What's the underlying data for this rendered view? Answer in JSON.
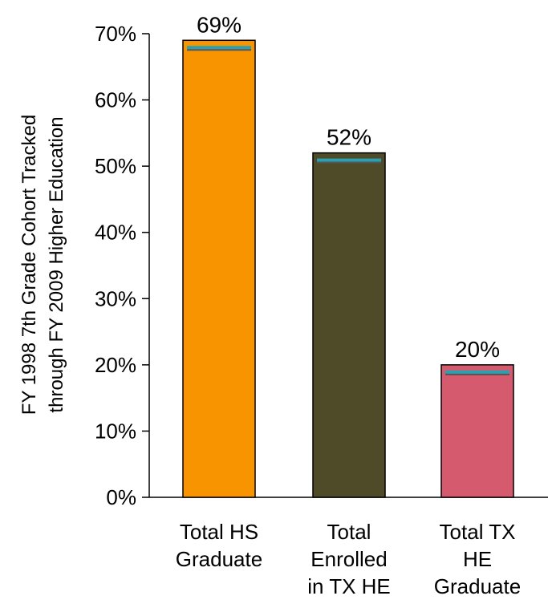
{
  "chart_data": {
    "type": "bar",
    "categories": [
      [
        "Total HS",
        "Graduate"
      ],
      [
        "Total",
        "Enrolled",
        "in TX HE"
      ],
      [
        "Total TX",
        "HE",
        "Graduate"
      ]
    ],
    "values": [
      69,
      52,
      20
    ],
    "data_labels": [
      "69%",
      "52%",
      "20%"
    ],
    "bar_colors": [
      "#f79400",
      "#4f4b28",
      "#d55a6e"
    ],
    "marker_color": "#2aa1b3",
    "ylabel": [
      "FY 1998 7th Grade Cohort Tracked",
      "through FY 2009 Higher Education"
    ],
    "ylim": [
      0,
      70
    ],
    "yticks": [
      0,
      10,
      20,
      30,
      40,
      50,
      60,
      70
    ],
    "ytick_labels": [
      "0%",
      "10%",
      "20%",
      "30%",
      "40%",
      "50%",
      "60%",
      "70%"
    ],
    "grid": false,
    "legend": "none"
  }
}
